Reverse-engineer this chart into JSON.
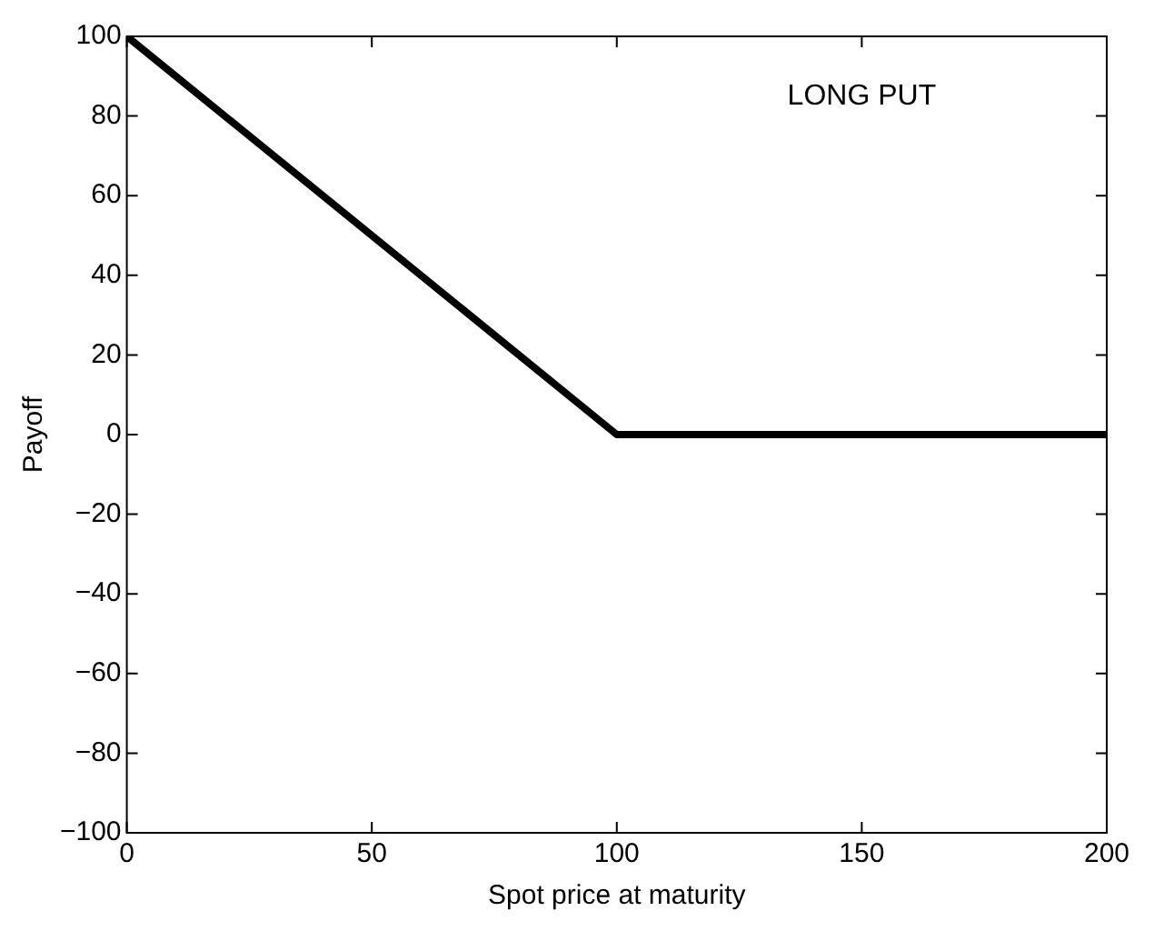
{
  "chart_data": {
    "type": "line",
    "xlabel": "Spot price at maturity",
    "ylabel": "Payoff",
    "annotations": [
      "LONG PUT"
    ],
    "series": [
      {
        "color": "#000000",
        "x": [
          0,
          100,
          200
        ],
        "values": [
          100,
          0,
          0
        ]
      }
    ],
    "xlim": [
      0,
      200
    ],
    "xticks": [
      0,
      50,
      100,
      150,
      200
    ],
    "ylim": [
      -100,
      100
    ],
    "yticks": [
      {
        "value": -100,
        "label": "−100"
      },
      {
        "value": -80,
        "label": "−80"
      },
      {
        "value": -60,
        "label": "−60"
      },
      {
        "value": -40,
        "label": "−40"
      },
      {
        "value": -20,
        "label": "−20"
      },
      0,
      20,
      40,
      60,
      80,
      100
    ],
    "grid": false,
    "legend": false,
    "marker": "none",
    "line_style": "solid"
  }
}
